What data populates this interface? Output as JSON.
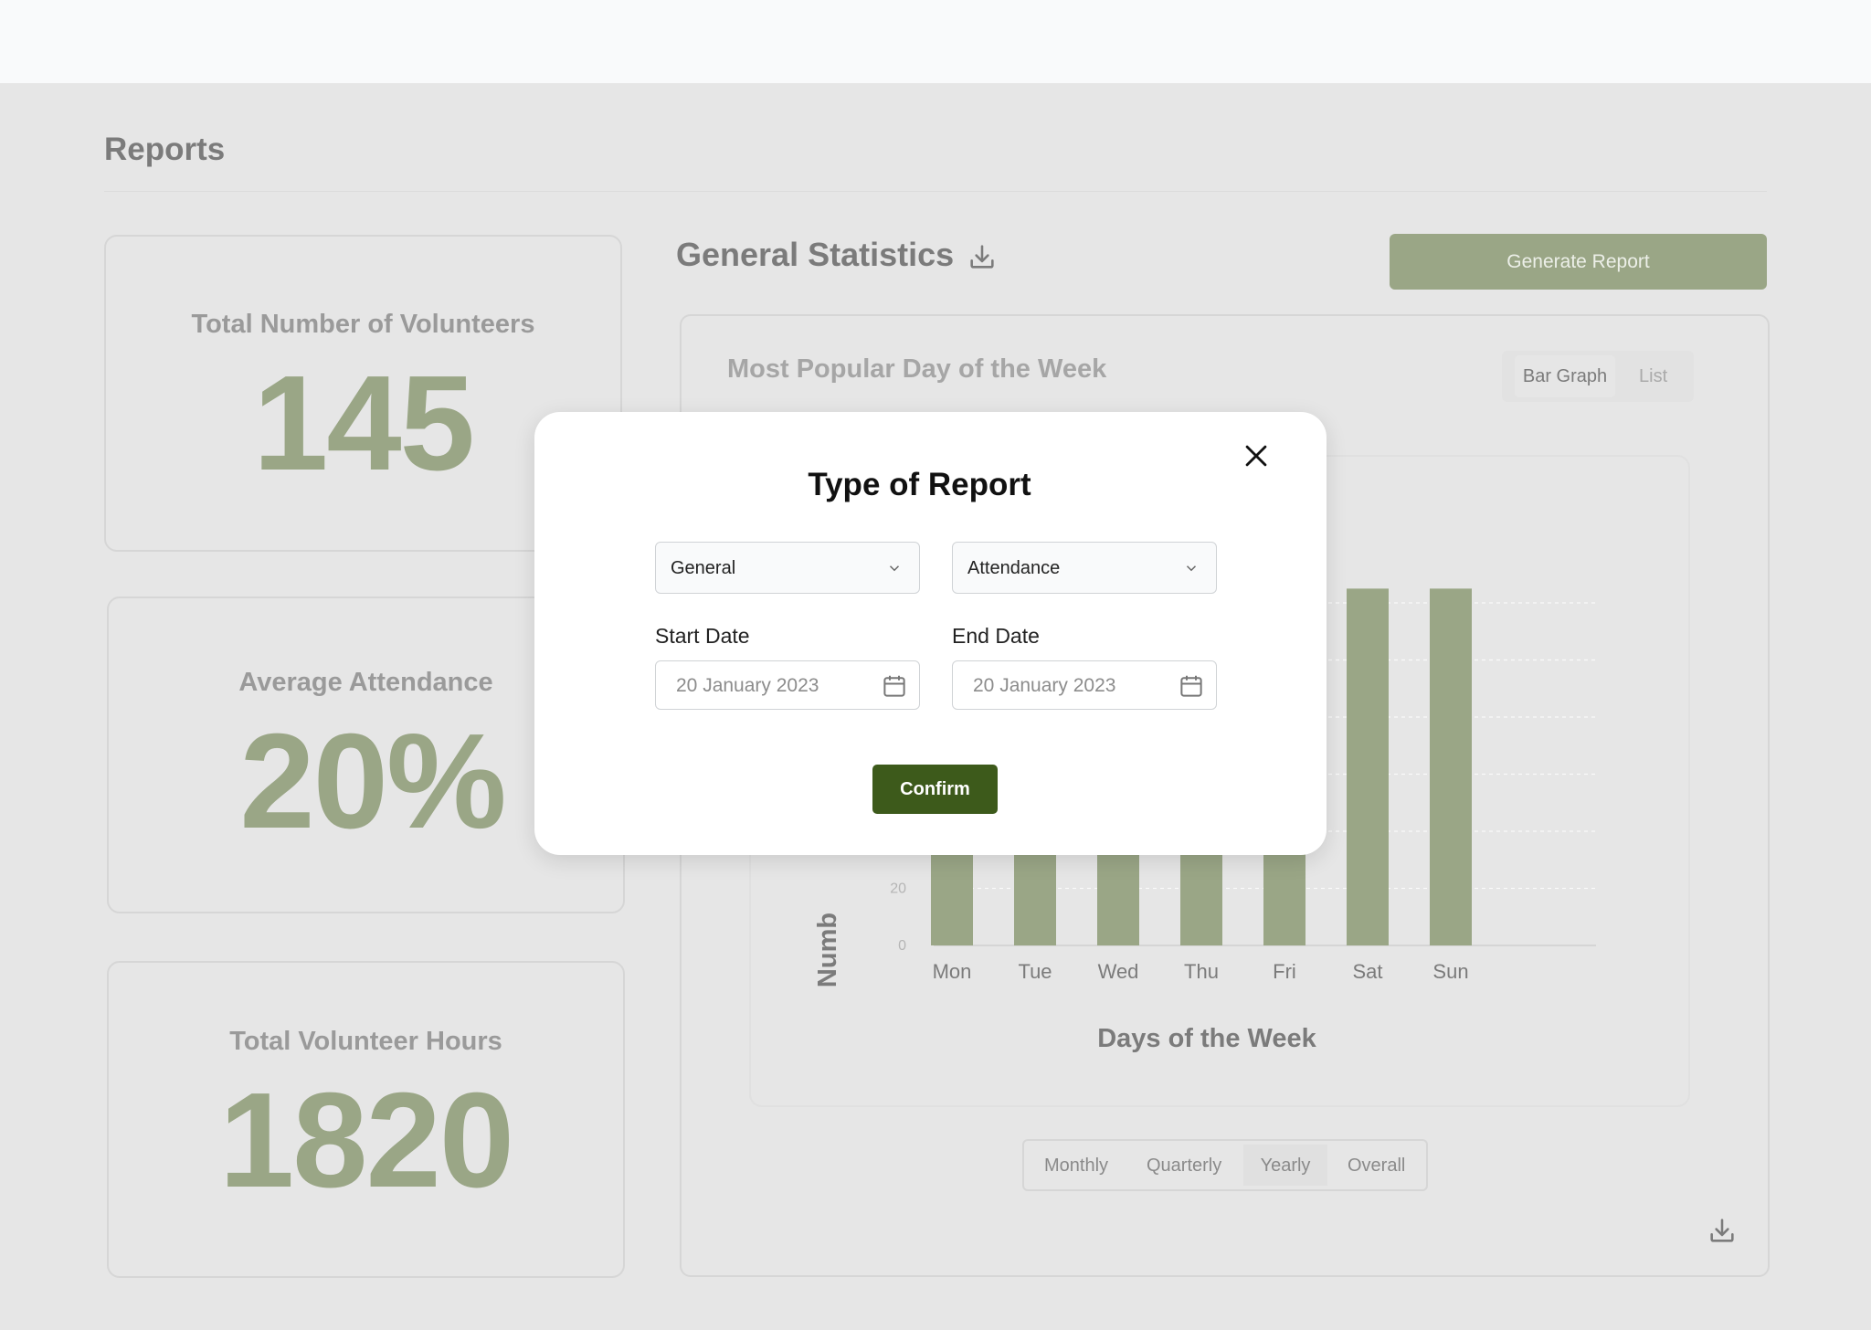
{
  "page": {
    "title": "Reports"
  },
  "stats": [
    {
      "label": "Total Number of Volunteers",
      "value": "145"
    },
    {
      "label": "Average Attendance",
      "value": "20%"
    },
    {
      "label": "Total Volunteer Hours",
      "value": "1820"
    }
  ],
  "general": {
    "title": "General Statistics",
    "download_icon": "download-icon",
    "generate_label": "Generate Report"
  },
  "chart_panel": {
    "title": "Most Popular Day of the Week",
    "view_options": [
      "Bar Graph",
      "List"
    ],
    "selected_view": "Bar Graph",
    "periods": [
      "Monthly",
      "Quarterly",
      "Yearly",
      "Overall"
    ],
    "selected_period": "Yearly"
  },
  "chart_data": {
    "type": "bar",
    "categories": [
      "Mon",
      "Tue",
      "Wed",
      "Thu",
      "Fri",
      "Sat",
      "Sun"
    ],
    "values": [
      null,
      null,
      null,
      null,
      null,
      125,
      125
    ],
    "xlabel": "Days of the Week",
    "ylabel": "Numb",
    "visible_ticks": [
      "0",
      "20"
    ],
    "grid": true,
    "bar_color": "#9aa686"
  },
  "modal": {
    "title": "Type of Report",
    "category_select": "General",
    "type_select": "Attendance",
    "start_label": "Start Date",
    "end_label": "End Date",
    "start_value": "20 January 2023",
    "end_value": "20 January 2023",
    "confirm_label": "Confirm"
  },
  "colors": {
    "accent": "#9aa686",
    "confirm": "#3d5a1b",
    "background": "#e6e6e6"
  }
}
